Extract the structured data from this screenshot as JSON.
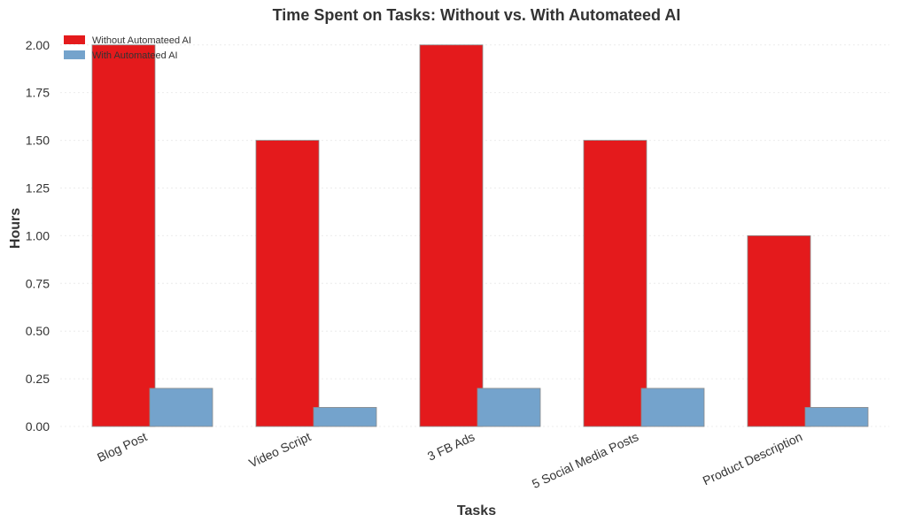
{
  "chart_data": {
    "type": "bar",
    "title": "Time Spent on Tasks: Without vs. With Automateed AI",
    "xlabel": "Tasks",
    "ylabel": "Hours",
    "categories": [
      "Blog Post",
      "Video Script",
      "3 FB Ads",
      "5 Social Media Posts",
      "Product Description"
    ],
    "series": [
      {
        "name": "Without Automateed AI",
        "values": [
          2.0,
          1.5,
          2.0,
          1.5,
          1.0
        ],
        "color": "#e41a1c"
      },
      {
        "name": "With Automateed AI",
        "values": [
          0.2,
          0.1,
          0.2,
          0.2,
          0.1
        ],
        "color": "#74a3cc"
      }
    ],
    "ylim": [
      0,
      2.05
    ],
    "yticks": [
      "0.00",
      "0.25",
      "0.50",
      "0.75",
      "1.00",
      "1.25",
      "1.50",
      "1.75",
      "2.00"
    ],
    "grid": true,
    "legend_position": "top-left"
  }
}
